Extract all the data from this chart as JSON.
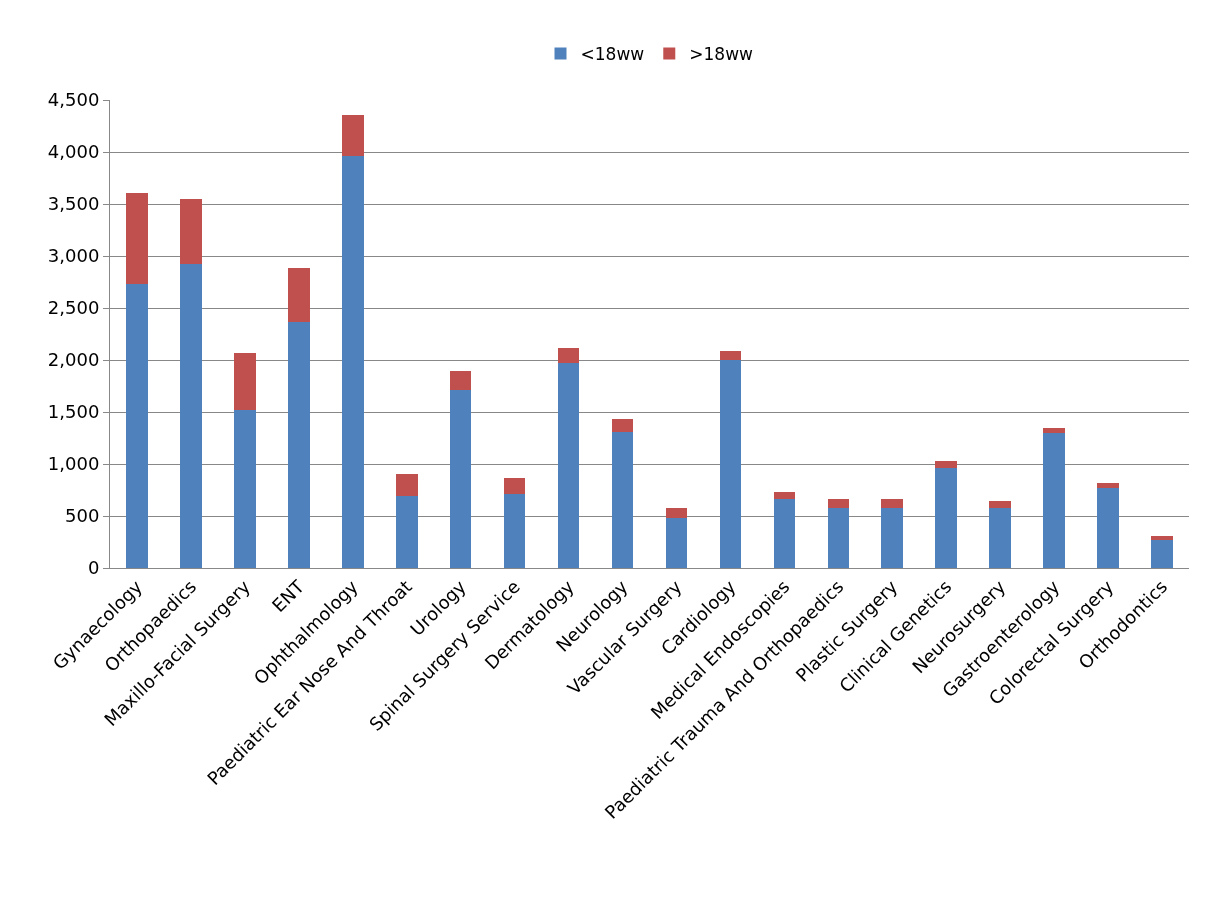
{
  "chart_data": {
    "type": "bar",
    "stacked": true,
    "legend": "top",
    "grid": "y",
    "categories": [
      "Gynaecology",
      "Orthopaedics",
      "Maxillo-Facial Surgery",
      "ENT",
      "Ophthalmology",
      "Paediatric Ear Nose And Throat",
      "Urology",
      "Spinal Surgery Service",
      "Dermatology",
      "Neurology",
      "Vascular Surgery",
      "Cardiology",
      "Medical Endoscopies",
      "Paediatric Trauma And Orthopaedics",
      "Plastic Surgery",
      "Clinical Genetics",
      "Neurosurgery",
      "Gastroenterology",
      "Colorectal Surgery",
      "Orthodontics"
    ],
    "series": [
      {
        "name": "<18ww",
        "color": "#4f81bd",
        "values": [
          2730,
          2920,
          1520,
          2370,
          3960,
          690,
          1710,
          710,
          1970,
          1310,
          480,
          2000,
          660,
          580,
          580,
          960,
          580,
          1300,
          770,
          270
        ]
      },
      {
        "name": ">18ww",
        "color": "#c0504d",
        "values": [
          880,
          630,
          550,
          510,
          400,
          210,
          180,
          160,
          150,
          120,
          100,
          90,
          70,
          80,
          80,
          70,
          60,
          50,
          50,
          40
        ]
      }
    ],
    "ylim": [
      0,
      4500
    ],
    "yticks": [
      {
        "value": 0,
        "label": "0"
      },
      {
        "value": 500,
        "label": "500"
      },
      {
        "value": 1000,
        "label": "1,000"
      },
      {
        "value": 1500,
        "label": "1,500"
      },
      {
        "value": 2000,
        "label": "2,000"
      },
      {
        "value": 2500,
        "label": "2,500"
      },
      {
        "value": 3000,
        "label": "3,000"
      },
      {
        "value": 3500,
        "label": "3,500"
      },
      {
        "value": 4000,
        "label": "4,000"
      },
      {
        "value": 4500,
        "label": "4,500"
      }
    ]
  }
}
